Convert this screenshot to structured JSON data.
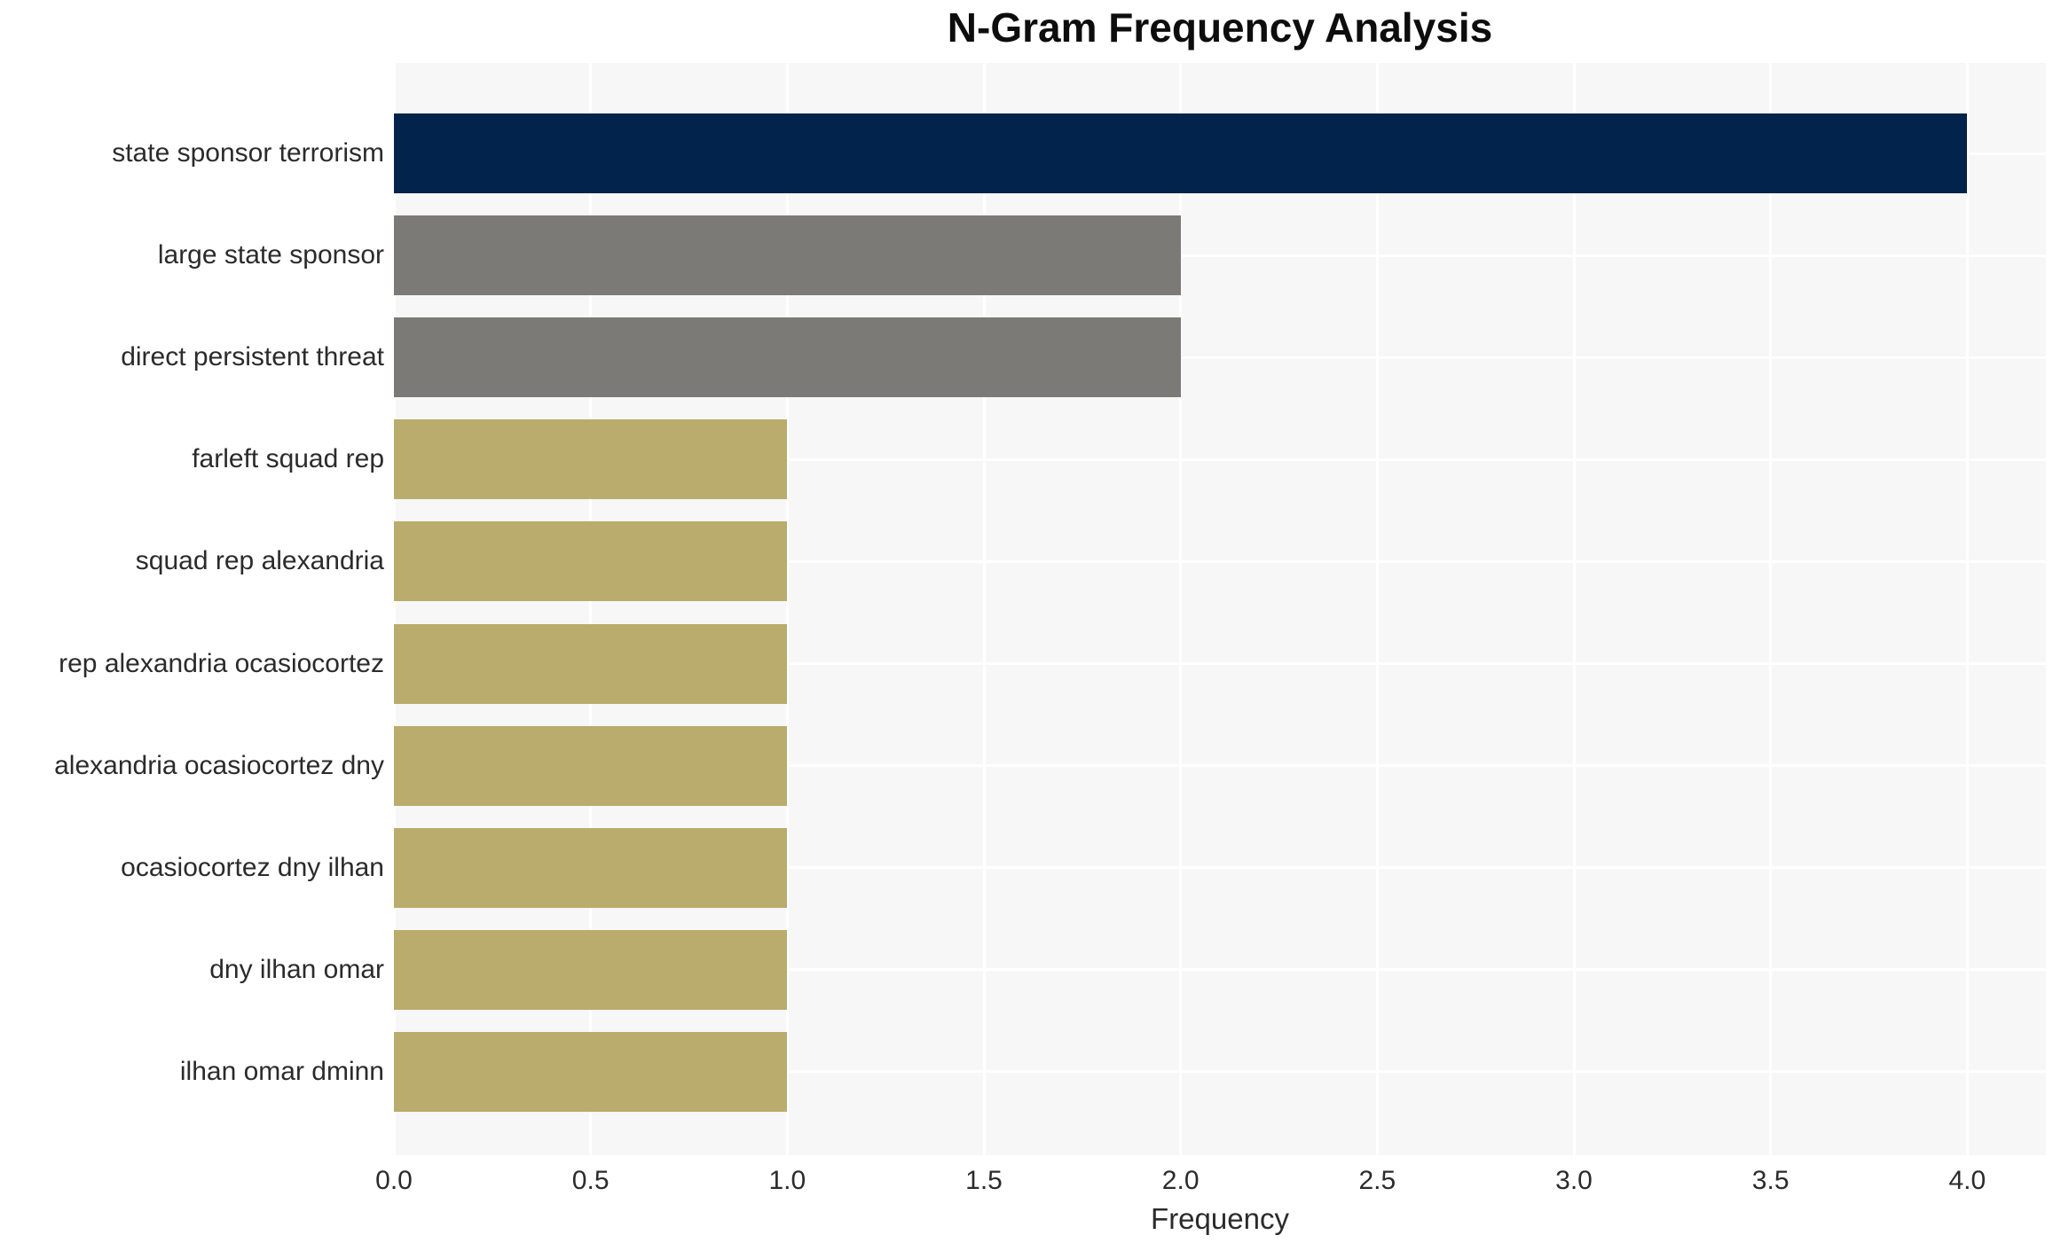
{
  "chart_data": {
    "type": "bar",
    "orientation": "horizontal",
    "title": "N-Gram Frequency Analysis",
    "xlabel": "Frequency",
    "ylabel": "",
    "categories": [
      "state sponsor terrorism",
      "large state sponsor",
      "direct persistent threat",
      "farleft squad rep",
      "squad rep alexandria",
      "rep alexandria ocasiocortez",
      "alexandria ocasiocortez dny",
      "ocasiocortez dny ilhan",
      "dny ilhan omar",
      "ilhan omar dminn"
    ],
    "values": [
      4,
      2,
      2,
      1,
      1,
      1,
      1,
      1,
      1,
      1
    ],
    "bar_colors": [
      "#02234C",
      "#7B7A77",
      "#7B7A77",
      "#B9AC6C",
      "#B9AC6C",
      "#B9AC6C",
      "#B9AC6C",
      "#B9AC6C",
      "#B9AC6C",
      "#B9AC6C"
    ],
    "xlim": [
      0.0,
      4.2
    ],
    "xticks": [
      0.0,
      0.5,
      1.0,
      1.5,
      2.0,
      2.5,
      3.0,
      3.5,
      4.0
    ],
    "xtick_labels": [
      "0.0",
      "0.5",
      "1.0",
      "1.5",
      "2.0",
      "2.5",
      "3.0",
      "3.5",
      "4.0"
    ],
    "grid": true,
    "legend": null,
    "colors": {
      "plot_background": "#f7f7f7",
      "figure_background": "#ffffff",
      "gridline": "#ffffff",
      "text": "#2b2b2b",
      "title_text": "#0d0d0d"
    }
  }
}
